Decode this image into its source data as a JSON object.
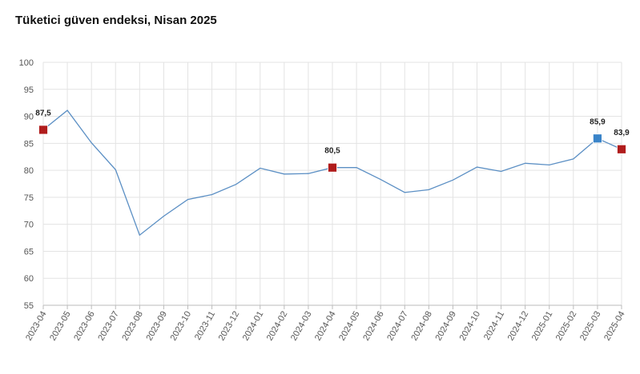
{
  "chart_data": {
    "type": "line",
    "title": "Tüketici güven endeksi, Nisan 2025",
    "xlabel": "",
    "ylabel": "",
    "ylim": [
      55,
      100
    ],
    "yticks": [
      "55",
      "60",
      "65",
      "70",
      "75",
      "80",
      "85",
      "90",
      "95",
      "100"
    ],
    "grid": true,
    "categories": [
      "2023-04",
      "2023-05",
      "2023-06",
      "2023-07",
      "2023-08",
      "2023-09",
      "2023-10",
      "2023-11",
      "2023-12",
      "2024-01",
      "2024-02",
      "2024-03",
      "2024-04",
      "2024-05",
      "2024-06",
      "2024-07",
      "2024-08",
      "2024-09",
      "2024-10",
      "2024-11",
      "2024-12",
      "2025-01",
      "2025-02",
      "2025-03",
      "2025-04"
    ],
    "series": [
      {
        "color": "#5b8fc4",
        "values": [
          87.5,
          91.1,
          85.1,
          80.1,
          68.0,
          71.5,
          74.6,
          75.5,
          77.4,
          80.4,
          79.3,
          79.4,
          80.5,
          80.5,
          78.3,
          75.9,
          76.4,
          78.2,
          80.6,
          79.8,
          81.3,
          81.0,
          82.1,
          85.9,
          83.9
        ]
      }
    ],
    "highlights": [
      {
        "index": 0,
        "label": "87,5",
        "color": "#b01c1c"
      },
      {
        "index": 12,
        "label": "80,5",
        "color": "#b01c1c"
      },
      {
        "index": 23,
        "label": "85,9",
        "color": "#3a84c9"
      },
      {
        "index": 24,
        "label": "83,9",
        "color": "#b01c1c"
      }
    ]
  }
}
